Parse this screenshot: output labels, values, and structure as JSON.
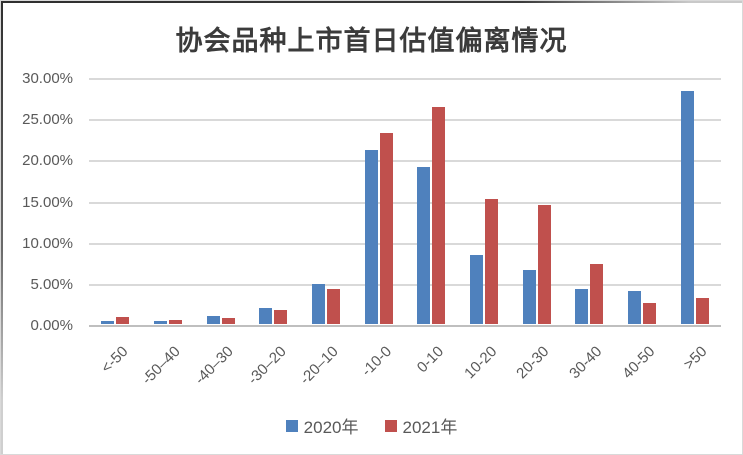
{
  "chart_data": {
    "type": "bar",
    "title": "协会品种上市首日估值偏离情况",
    "categories": [
      "<-50",
      "-50–40",
      "-40–30",
      "-30–20",
      "-20–10",
      "-10-0",
      "0-10",
      "10-20",
      "20-30",
      "30-40",
      "40-50",
      ">50"
    ],
    "series": [
      {
        "name": "2020年",
        "color": "#4F81BD",
        "values": [
          0.4,
          0.4,
          1.0,
          1.9,
          4.8,
          21.1,
          19.1,
          8.4,
          6.6,
          4.2,
          4.0,
          28.3
        ]
      },
      {
        "name": "2021年",
        "color": "#C0504D",
        "values": [
          0.8,
          0.5,
          0.7,
          1.7,
          4.3,
          23.2,
          26.3,
          15.2,
          14.5,
          7.3,
          2.6,
          3.2
        ]
      }
    ],
    "xlabel": "",
    "ylabel": "",
    "ylim": [
      0,
      30
    ],
    "y_ticks": [
      {
        "value": 30,
        "label": "30.00%"
      },
      {
        "value": 25,
        "label": "25.00%"
      },
      {
        "value": 20,
        "label": "20.00%"
      },
      {
        "value": 15,
        "label": "15.00%"
      },
      {
        "value": 10,
        "label": "10.00%"
      },
      {
        "value": 5,
        "label": "5.00%"
      },
      {
        "value": 0,
        "label": "0.00%"
      }
    ],
    "grid": true,
    "legend_position": "bottom",
    "colors": {
      "grid": "#d9d9d9",
      "axis_text": "#595959",
      "title_text": "#3b3b3b"
    }
  }
}
